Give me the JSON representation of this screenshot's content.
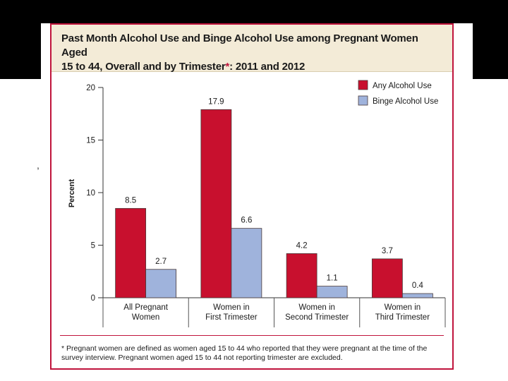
{
  "chart_data": {
    "type": "bar",
    "title_line1": "Past Month Alcohol Use and Binge Alcohol Use among Pregnant Women Aged",
    "title_line2": "15 to 44, Overall and by Trimester",
    "title_asterisk": "*",
    "title_suffix": ": 2011 and 2012",
    "ylabel": "Percent",
    "xlabel": "",
    "ylim": [
      0,
      20
    ],
    "yticks": [
      "0",
      "5",
      "10",
      "15",
      "20"
    ],
    "ytick_values": [
      0,
      5,
      10,
      15,
      20
    ],
    "categories": [
      [
        "All Pregnant",
        "Women"
      ],
      [
        "Women in",
        "First Trimester"
      ],
      [
        "Women in",
        "Second Trimester"
      ],
      [
        "Women in",
        "Third Trimester"
      ]
    ],
    "series": [
      {
        "name": "Any Alcohol Use",
        "color": "#c8102e",
        "values": [
          8.5,
          17.9,
          4.2,
          3.7
        ],
        "labels": [
          "8.5",
          "17.9",
          "4.2",
          "3.7"
        ]
      },
      {
        "name": "Binge Alcohol Use",
        "color": "#9fb3dc",
        "values": [
          2.7,
          6.6,
          1.1,
          0.4
        ],
        "labels": [
          "2.7",
          "6.6",
          "1.1",
          "0.4"
        ]
      }
    ],
    "legend_position": "top-right",
    "footnote": "* Pregnant women are defined as women aged 15 to 44 who reported that they were pregnant at the time of the survey interview. Pregnant women aged 15 to 44 not reporting trimester are excluded."
  },
  "decoration": {
    "stray_mark": ","
  }
}
